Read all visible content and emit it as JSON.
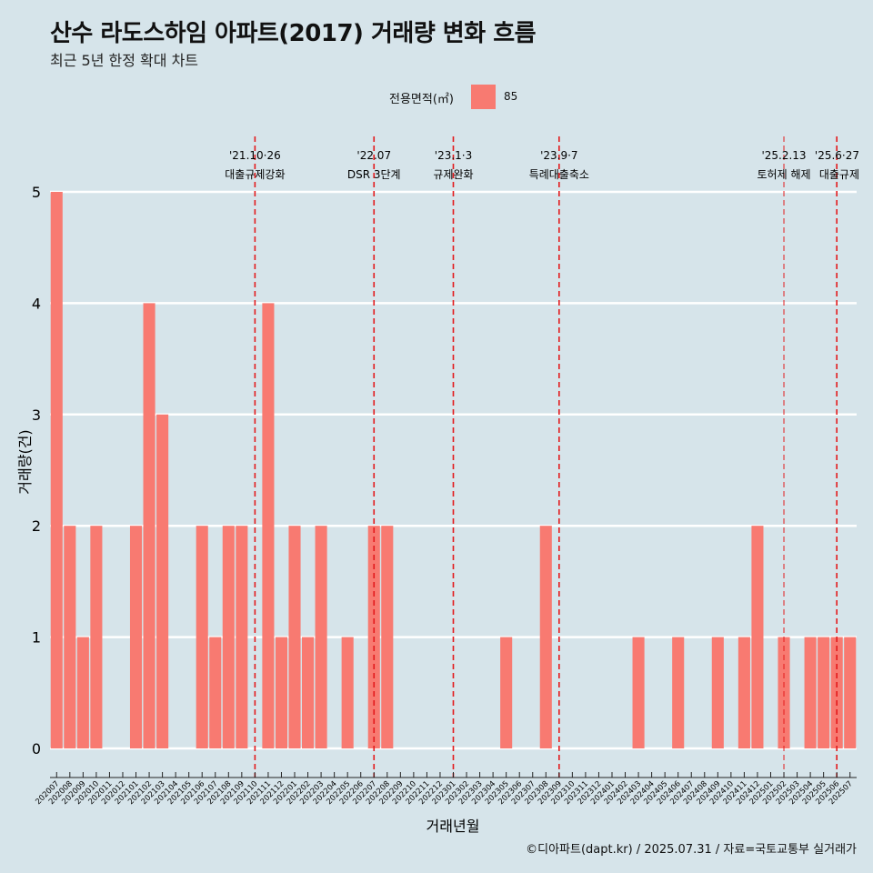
{
  "header": {
    "title": "산수 라도스하임 아파트(2017) 거래량 변화 흐름",
    "subtitle": "최근 5년 한정 확대 차트"
  },
  "legend": {
    "title": "전용면적(㎡)",
    "items": [
      {
        "label": "85",
        "color": "#f87a71"
      }
    ]
  },
  "caption": "©디아파트(dapt.kr) / 2025.07.31 / 자료=국토교통부 실거래가",
  "colors": {
    "bar": "#f87a71",
    "event_line": "#e31a1c",
    "background": "#d6e4ea",
    "grid": "#ffffff"
  },
  "chart_data": {
    "type": "bar",
    "xlabel": "거래년월",
    "ylabel": "거래량(건)",
    "ylim": [
      0,
      5
    ],
    "yticks": [
      0,
      1,
      2,
      3,
      4,
      5
    ],
    "grid": true,
    "legend_position": "top",
    "categories": [
      "202007",
      "202008",
      "202009",
      "202010",
      "202011",
      "202012",
      "202101",
      "202102",
      "202103",
      "202104",
      "202105",
      "202106",
      "202107",
      "202108",
      "202109",
      "202110",
      "202111",
      "202112",
      "202201",
      "202202",
      "202203",
      "202204",
      "202205",
      "202206",
      "202207",
      "202208",
      "202209",
      "202210",
      "202211",
      "202212",
      "202301",
      "202302",
      "202303",
      "202304",
      "202305",
      "202306",
      "202307",
      "202308",
      "202309",
      "202310",
      "202311",
      "202312",
      "202401",
      "202402",
      "202403",
      "202404",
      "202405",
      "202406",
      "202407",
      "202408",
      "202409",
      "202410",
      "202411",
      "202412",
      "202501",
      "202502",
      "202503",
      "202504",
      "202505",
      "202506",
      "202507"
    ],
    "series": [
      {
        "name": "85",
        "values": [
          5,
          2,
          1,
          2,
          0,
          0,
          2,
          4,
          3,
          0,
          0,
          2,
          1,
          2,
          2,
          0,
          4,
          1,
          2,
          1,
          2,
          0,
          1,
          0,
          2,
          2,
          0,
          0,
          0,
          0,
          0,
          0,
          0,
          0,
          1,
          0,
          0,
          2,
          0,
          0,
          0,
          0,
          0,
          0,
          1,
          0,
          0,
          1,
          0,
          0,
          1,
          0,
          1,
          2,
          0,
          1,
          0,
          1,
          1,
          1,
          1
        ]
      }
    ],
    "events": [
      {
        "date": "'21.10·26",
        "label": "대출규제강화",
        "at": "202110"
      },
      {
        "date": "'22.07",
        "label": "DSR 3단계",
        "at": "202207"
      },
      {
        "date": "'23.1·3",
        "label": "규제완화",
        "at": "202301"
      },
      {
        "date": "'23.9·7",
        "label": "특례대출축소",
        "at": "202309"
      },
      {
        "date": "'25.2.13",
        "label": "토허제 해제",
        "at": "202502"
      },
      {
        "date": "'25.6·27",
        "label": "대출규제",
        "at": "202506"
      }
    ]
  }
}
